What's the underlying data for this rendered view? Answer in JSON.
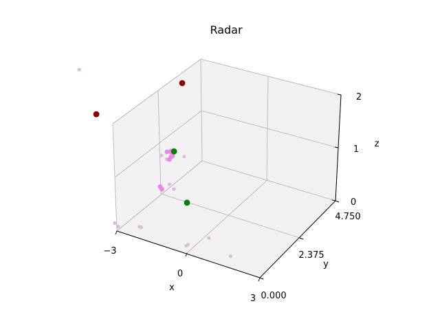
{
  "chart_data": {
    "type": "scatter",
    "projection": "3d",
    "title": "Radar",
    "xlabel": "x",
    "ylabel": "y",
    "zlabel": "z",
    "xlim": [
      -3,
      3
    ],
    "ylim": [
      0,
      4.75
    ],
    "zlim": [
      0,
      2
    ],
    "x_ticks": [
      "−3",
      "0",
      "3"
    ],
    "y_ticks": [
      "0.000",
      "2.375",
      "4.750"
    ],
    "z_ticks": [
      "0",
      "1",
      "2"
    ],
    "grid": true,
    "series": [
      {
        "color": "#d8bfd8",
        "size": "small",
        "points": [
          {
            "x": -2.9,
            "y": 0.3,
            "z": 0.08
          },
          {
            "x": -2.7,
            "y": 0.4,
            "z": 0.02
          },
          {
            "x": -1.5,
            "y": 0.9,
            "z": 0.05
          },
          {
            "x": -1.4,
            "y": 0.95,
            "z": 0.04
          },
          {
            "x": 0.4,
            "y": 0.8,
            "z": 0.0
          },
          {
            "x": 0.5,
            "y": 0.85,
            "z": 0.02
          },
          {
            "x": 2.5,
            "y": 1.2,
            "z": 0.0
          },
          {
            "x": 2.2,
            "y": 2.2,
            "z": 0.02
          },
          {
            "x": -1.8,
            "y": 4.3,
            "z": 2.0
          },
          {
            "x": 2.7,
            "y": 4.6,
            "z": 0.95
          },
          {
            "x": 1.2,
            "y": 3.2,
            "z": 0.6
          },
          {
            "x": 1.5,
            "y": 3.4,
            "z": 0.5
          },
          {
            "x": 1.3,
            "y": 3.5,
            "z": 1.0
          },
          {
            "x": 1.2,
            "y": 3.7,
            "z": 1.0
          }
        ]
      },
      {
        "color": "#ee82ee",
        "size": "medium",
        "points": [
          {
            "x": 1.3,
            "y": 3.3,
            "z": 1.05
          },
          {
            "x": 1.4,
            "y": 3.35,
            "z": 1.1
          },
          {
            "x": 1.5,
            "y": 3.4,
            "z": 1.12
          },
          {
            "x": 1.4,
            "y": 3.3,
            "z": 1.2
          },
          {
            "x": 1.5,
            "y": 3.5,
            "z": 1.18
          },
          {
            "x": 1.3,
            "y": 3.45,
            "z": 1.15
          },
          {
            "x": 0.8,
            "y": 3.2,
            "z": 0.5
          },
          {
            "x": 0.9,
            "y": 3.25,
            "z": 0.45
          }
        ]
      },
      {
        "color": "#8b0000",
        "size": "large",
        "points": [
          {
            "x": -2.5,
            "y": 2.0,
            "z": 1.7
          },
          {
            "x": 2.5,
            "y": 4.2,
            "z": 2.4
          }
        ]
      },
      {
        "color": "#008000",
        "size": "large",
        "points": [
          {
            "x": 1.45,
            "y": 3.2,
            "z": 1.25
          },
          {
            "x": 1.8,
            "y": 3.0,
            "z": 0.4
          }
        ]
      }
    ]
  }
}
